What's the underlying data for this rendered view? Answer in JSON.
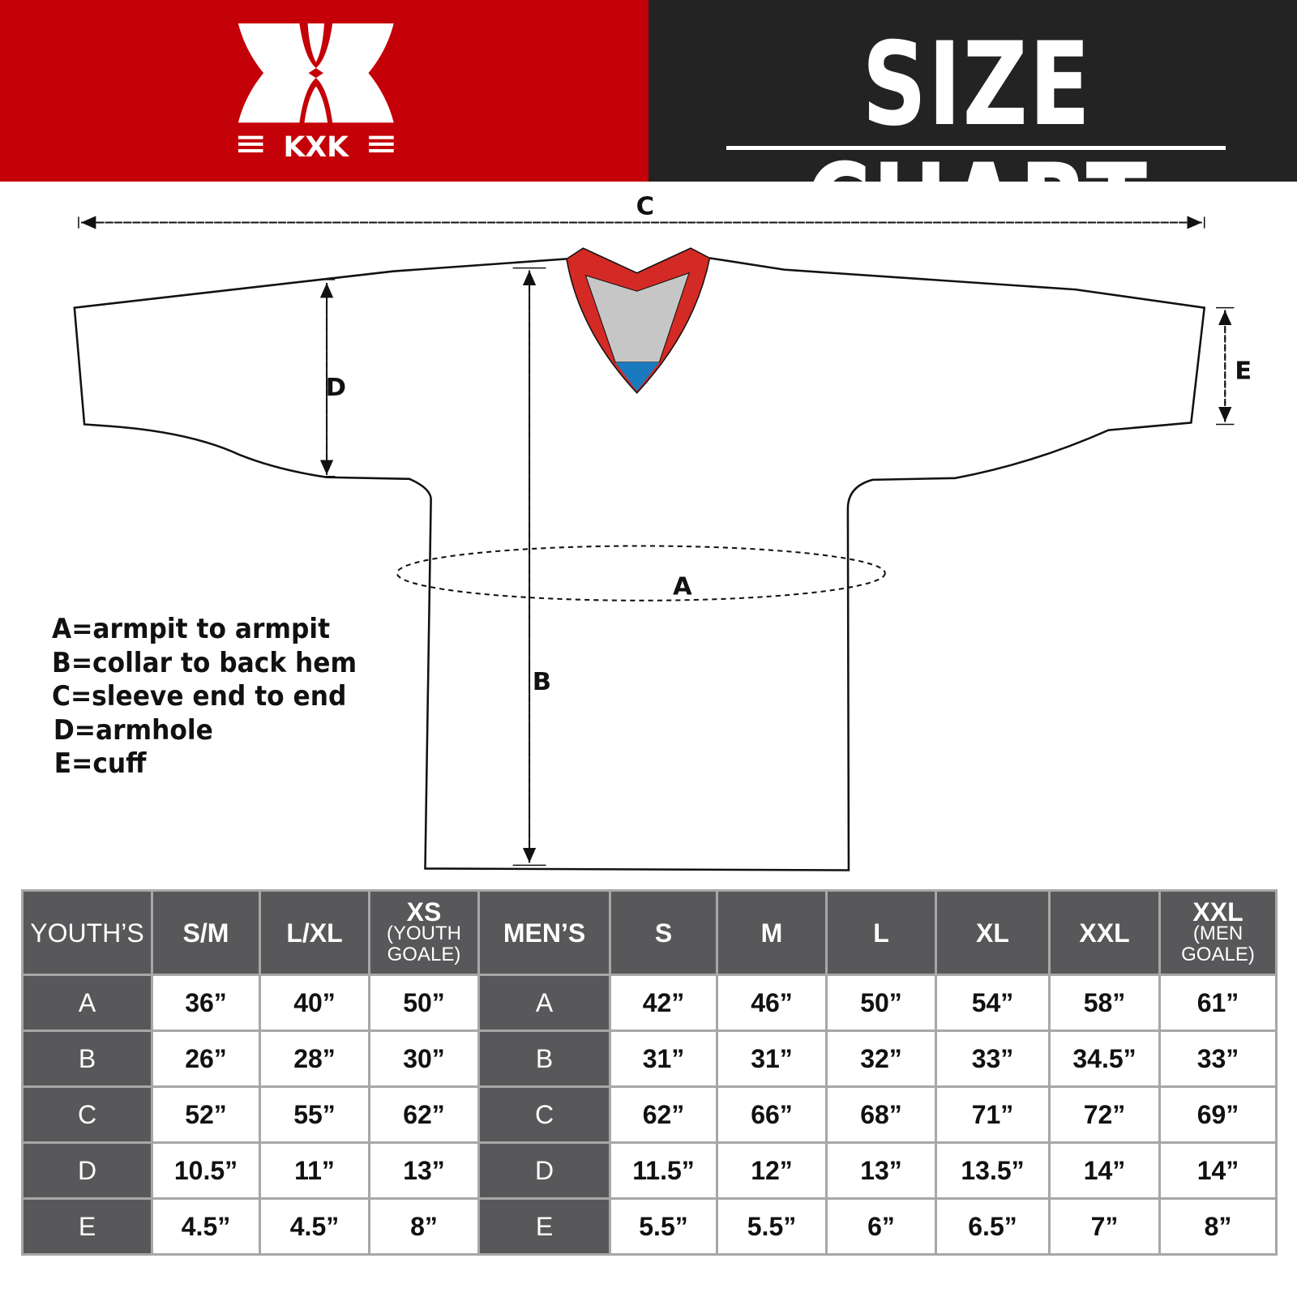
{
  "header": {
    "logo_text": "KXK",
    "title": "SIZE CHART",
    "brand_color": "#c40108",
    "dark_color": "#232323"
  },
  "diagram": {
    "labels": {
      "A": "A",
      "B": "B",
      "C": "C",
      "D": "D",
      "E": "E"
    },
    "collar_colors": {
      "trim": "#d42a25",
      "inner": "#c6c6c6",
      "tip": "#1a7ac0"
    }
  },
  "legend": [
    "A=armpit to armpit",
    "B=collar to back hem",
    "C=sleeve end to end",
    "D=armhole",
    "E=cuff"
  ],
  "table": {
    "youth_header": "YOUTH’S",
    "youth_sizes": [
      {
        "main": "S/M",
        "sub": ""
      },
      {
        "main": "L/XL",
        "sub": ""
      },
      {
        "main": "XS",
        "sub": "(YOUTH GOALE)"
      }
    ],
    "men_header": "MEN’S",
    "men_sizes": [
      {
        "main": "S",
        "sub": ""
      },
      {
        "main": "M",
        "sub": ""
      },
      {
        "main": "L",
        "sub": ""
      },
      {
        "main": "XL",
        "sub": ""
      },
      {
        "main": "XXL",
        "sub": ""
      },
      {
        "main": "XXL",
        "sub": "(MEN GOALE)"
      }
    ],
    "rows": [
      {
        "label": "A",
        "youth": [
          "36”",
          "40”",
          "50”"
        ],
        "men": [
          "42”",
          "46”",
          "50”",
          "54”",
          "58”",
          "61”"
        ]
      },
      {
        "label": "B",
        "youth": [
          "26”",
          "28”",
          "30”"
        ],
        "men": [
          "31”",
          "31”",
          "32”",
          "33”",
          "34.5”",
          "33”"
        ]
      },
      {
        "label": "C",
        "youth": [
          "52”",
          "55”",
          "62”"
        ],
        "men": [
          "62”",
          "66”",
          "68”",
          "71”",
          "72”",
          "69”"
        ]
      },
      {
        "label": "D",
        "youth": [
          "10.5”",
          "11”",
          "13”"
        ],
        "men": [
          "11.5”",
          "12”",
          "13”",
          "13.5”",
          "14”",
          "14”"
        ]
      },
      {
        "label": "E",
        "youth": [
          "4.5”",
          "4.5”",
          "8”"
        ],
        "men": [
          "5.5”",
          "5.5”",
          "6”",
          "6.5”",
          "7”",
          "8”"
        ]
      }
    ]
  }
}
